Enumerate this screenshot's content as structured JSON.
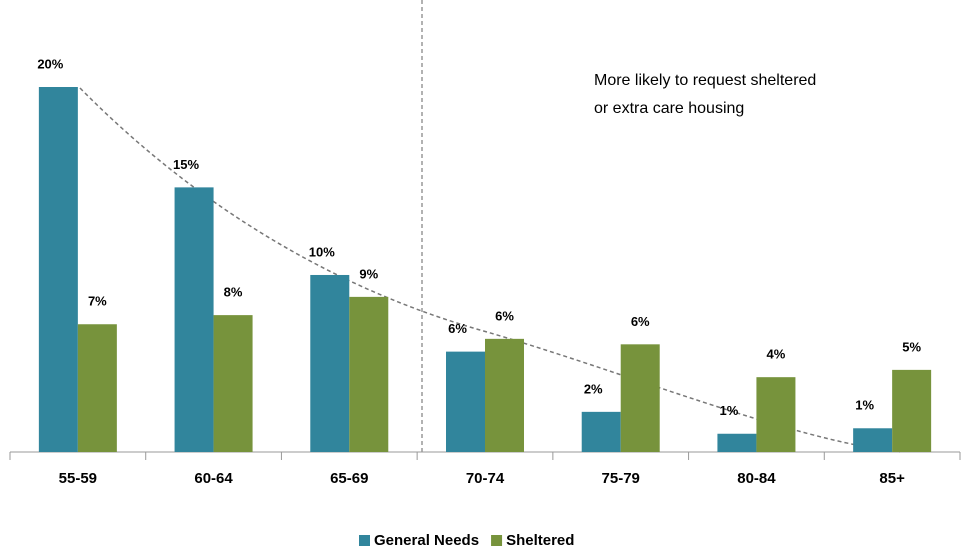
{
  "chart_data": {
    "type": "bar",
    "categories": [
      "55-59",
      "60-64",
      "65-69",
      "70-74",
      "75-79",
      "80-84",
      "85+"
    ],
    "series": [
      {
        "name": "General Needs",
        "color": "#31859c",
        "values": [
          20,
          14.5,
          9.7,
          5.5,
          2.2,
          1.0,
          1.3
        ],
        "value_labels": [
          "20%",
          "15%",
          "10%",
          "6%",
          "2%",
          "1%",
          "1%"
        ]
      },
      {
        "name": "Sheltered",
        "color": "#77933c",
        "values": [
          7,
          7.5,
          8.5,
          6.2,
          5.9,
          4.1,
          4.5
        ],
        "value_labels": [
          "7%",
          "8%",
          "9%",
          "6%",
          "6%",
          "4%",
          "5%"
        ]
      }
    ],
    "ylim": [
      0,
      20
    ],
    "annotation": [
      "More likely to request sheltered",
      "or extra care housing"
    ],
    "legend": "bottom"
  }
}
